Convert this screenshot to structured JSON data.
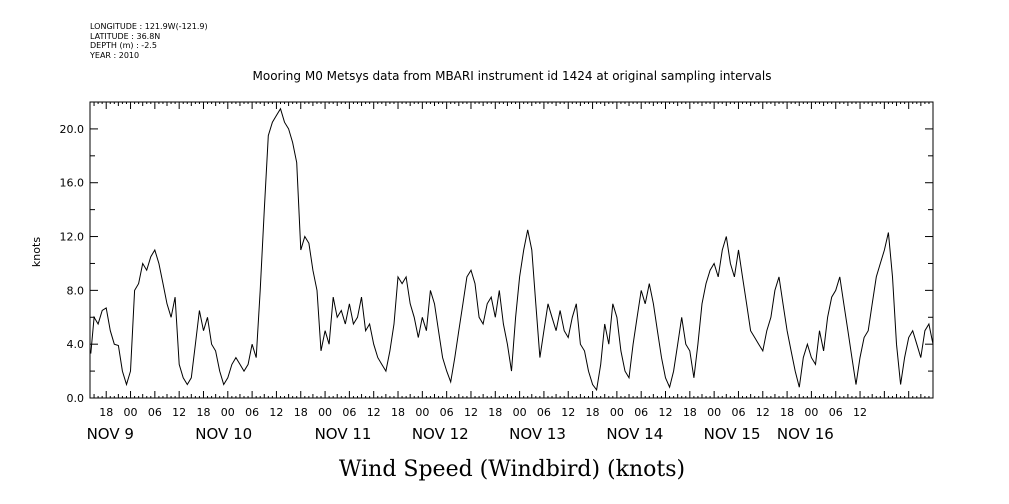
{
  "meta": {
    "longitude": "LONGITUDE : 121.9W(-121.9)",
    "latitude": "LATITUDE : 36.8N",
    "depth": "DEPTH (m) : -2.5",
    "year": "YEAR : 2010"
  },
  "chart_data": {
    "type": "line",
    "title": "Mooring M0 Metsys data from MBARI instrument id 1424 at original sampling intervals",
    "xlabel": "Wind Speed (Windbird) (knots)",
    "ylabel": "knots",
    "ylim": [
      0,
      22
    ],
    "y_ticks": [
      "0.0",
      "4.0",
      "8.0",
      "12.0",
      "16.0",
      "20.0"
    ],
    "x_range_hours": [
      -10,
      198
    ],
    "x_hour_labels": [
      "18",
      "00",
      "06",
      "12",
      "18",
      "00",
      "06",
      "12",
      "18",
      "00",
      "06",
      "12",
      "18",
      "00",
      "06",
      "12",
      "18",
      "00",
      "06",
      "12",
      "18",
      "00",
      "06",
      "12",
      "18",
      "00",
      "06",
      "12",
      "18",
      "00",
      "06",
      "12"
    ],
    "x_day_labels": [
      "NOV  9",
      "NOV 10",
      "NOV 11",
      "NOV 12",
      "NOV 13",
      "NOV 14",
      "NOV 15",
      "NOV 16"
    ],
    "grid": false,
    "series": [
      {
        "color": "#000000",
        "points": [
          [
            -9.8,
            3.3
          ],
          [
            -9,
            6
          ],
          [
            -8,
            5.5
          ],
          [
            -7,
            6.5
          ],
          [
            -6,
            6.7
          ],
          [
            -5,
            5
          ],
          [
            -4,
            4
          ],
          [
            -3,
            3.9
          ],
          [
            -2,
            2
          ],
          [
            -1,
            1
          ],
          [
            0,
            2
          ],
          [
            1,
            8
          ],
          [
            2,
            8.5
          ],
          [
            3,
            10
          ],
          [
            4,
            9.5
          ],
          [
            5,
            10.5
          ],
          [
            6,
            11
          ],
          [
            7,
            10
          ],
          [
            8,
            8.5
          ],
          [
            9,
            7
          ],
          [
            10,
            6
          ],
          [
            11,
            7.5
          ],
          [
            12,
            2.5
          ],
          [
            13,
            1.5
          ],
          [
            14,
            1
          ],
          [
            15,
            1.5
          ],
          [
            16,
            4
          ],
          [
            17,
            6.5
          ],
          [
            18,
            5
          ],
          [
            19,
            6
          ],
          [
            20,
            4
          ],
          [
            21,
            3.5
          ],
          [
            22,
            2
          ],
          [
            23,
            1
          ],
          [
            24,
            1.5
          ],
          [
            25,
            2.5
          ],
          [
            26,
            3
          ],
          [
            27,
            2.5
          ],
          [
            28,
            2
          ],
          [
            29,
            2.5
          ],
          [
            30,
            4
          ],
          [
            31,
            3
          ],
          [
            32,
            8
          ],
          [
            33,
            14
          ],
          [
            34,
            19.5
          ],
          [
            35,
            20.5
          ],
          [
            36,
            21
          ],
          [
            37,
            21.5
          ],
          [
            38,
            20.5
          ],
          [
            39,
            20
          ],
          [
            40,
            19
          ],
          [
            41,
            17.5
          ],
          [
            42,
            11
          ],
          [
            43,
            12
          ],
          [
            44,
            11.5
          ],
          [
            45,
            9.5
          ],
          [
            46,
            8
          ],
          [
            47,
            3.5
          ],
          [
            48,
            5
          ],
          [
            49,
            4
          ],
          [
            50,
            7.5
          ],
          [
            51,
            6
          ],
          [
            52,
            6.5
          ],
          [
            53,
            5.5
          ],
          [
            54,
            7
          ],
          [
            55,
            5.5
          ],
          [
            56,
            6
          ],
          [
            57,
            7.5
          ],
          [
            58,
            5
          ],
          [
            59,
            5.5
          ],
          [
            60,
            4
          ],
          [
            61,
            3
          ],
          [
            62,
            2.5
          ],
          [
            63,
            2
          ],
          [
            64,
            3.5
          ],
          [
            65,
            5.5
          ],
          [
            66,
            9
          ],
          [
            67,
            8.5
          ],
          [
            68,
            9
          ],
          [
            69,
            7
          ],
          [
            70,
            6
          ],
          [
            71,
            4.5
          ],
          [
            72,
            6
          ],
          [
            73,
            5
          ],
          [
            74,
            8
          ],
          [
            75,
            7
          ],
          [
            76,
            5
          ],
          [
            77,
            3
          ],
          [
            78,
            2
          ],
          [
            79,
            1.2
          ],
          [
            80,
            3
          ],
          [
            81,
            5
          ],
          [
            82,
            7
          ],
          [
            83,
            9
          ],
          [
            84,
            9.5
          ],
          [
            85,
            8.5
          ],
          [
            86,
            6
          ],
          [
            87,
            5.5
          ],
          [
            88,
            7
          ],
          [
            89,
            7.5
          ],
          [
            90,
            6
          ],
          [
            91,
            8
          ],
          [
            92,
            5.5
          ],
          [
            93,
            4
          ],
          [
            94,
            2
          ],
          [
            95,
            6
          ],
          [
            96,
            9
          ],
          [
            97,
            11
          ],
          [
            98,
            12.5
          ],
          [
            99,
            11
          ],
          [
            100,
            7
          ],
          [
            101,
            3
          ],
          [
            102,
            5
          ],
          [
            103,
            7
          ],
          [
            104,
            6
          ],
          [
            105,
            5
          ],
          [
            106,
            6.5
          ],
          [
            107,
            5
          ],
          [
            108,
            4.5
          ],
          [
            109,
            6
          ],
          [
            110,
            7
          ],
          [
            111,
            4
          ],
          [
            112,
            3.5
          ],
          [
            113,
            2
          ],
          [
            114,
            1
          ],
          [
            115,
            0.6
          ],
          [
            116,
            2.5
          ],
          [
            117,
            5.5
          ],
          [
            118,
            4
          ],
          [
            119,
            7
          ],
          [
            120,
            6
          ],
          [
            121,
            3.5
          ],
          [
            122,
            2
          ],
          [
            123,
            1.5
          ],
          [
            124,
            4
          ],
          [
            125,
            6
          ],
          [
            126,
            8
          ],
          [
            127,
            7
          ],
          [
            128,
            8.5
          ],
          [
            129,
            7
          ],
          [
            130,
            5
          ],
          [
            131,
            3
          ],
          [
            132,
            1.5
          ],
          [
            133,
            0.8
          ],
          [
            134,
            2
          ],
          [
            135,
            4
          ],
          [
            136,
            6
          ],
          [
            137,
            4
          ],
          [
            138,
            3.5
          ],
          [
            139,
            1.5
          ],
          [
            140,
            4
          ],
          [
            141,
            7
          ],
          [
            142,
            8.5
          ],
          [
            143,
            9.5
          ],
          [
            144,
            10
          ],
          [
            145,
            9
          ],
          [
            146,
            11
          ],
          [
            147,
            12
          ],
          [
            148,
            10
          ],
          [
            149,
            9
          ],
          [
            150,
            11
          ],
          [
            151,
            9
          ],
          [
            152,
            7
          ],
          [
            153,
            5
          ],
          [
            154,
            4.5
          ],
          [
            155,
            4
          ],
          [
            156,
            3.5
          ],
          [
            157,
            5
          ],
          [
            158,
            6
          ],
          [
            159,
            8
          ],
          [
            160,
            9
          ],
          [
            161,
            7
          ],
          [
            162,
            5
          ],
          [
            163,
            3.5
          ],
          [
            164,
            2
          ],
          [
            165,
            0.8
          ],
          [
            166,
            3
          ],
          [
            167,
            4
          ],
          [
            168,
            3
          ],
          [
            169,
            2.5
          ],
          [
            170,
            5
          ],
          [
            171,
            3.5
          ],
          [
            172,
            6
          ],
          [
            173,
            7.5
          ],
          [
            174,
            8
          ],
          [
            175,
            9
          ],
          [
            176,
            7
          ],
          [
            177,
            5
          ],
          [
            178,
            3
          ],
          [
            179,
            1
          ],
          [
            180,
            3
          ],
          [
            181,
            4.5
          ],
          [
            182,
            5
          ],
          [
            183,
            7
          ],
          [
            184,
            9
          ],
          [
            185,
            10
          ],
          [
            186,
            11
          ],
          [
            187,
            12.3
          ],
          [
            188,
            9
          ],
          [
            189,
            4
          ],
          [
            190,
            1
          ],
          [
            191,
            3
          ],
          [
            192,
            4.5
          ],
          [
            193,
            5
          ],
          [
            194,
            4
          ],
          [
            195,
            3
          ],
          [
            196,
            5
          ],
          [
            197,
            5.5
          ],
          [
            198,
            4
          ]
        ]
      }
    ]
  }
}
